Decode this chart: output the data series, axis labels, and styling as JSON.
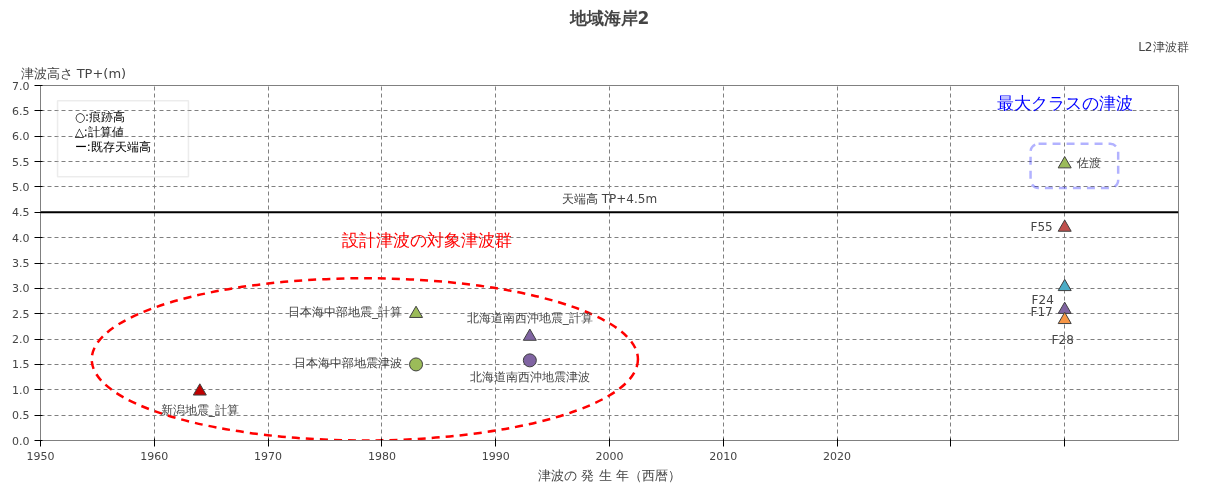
{
  "chart_data": {
    "type": "scatter",
    "title": "地域海岸2",
    "xlabel": "津波の 発 生 年（西暦）",
    "ylabel": "津波高さ TP+(m)",
    "xlim": [
      1950,
      2050
    ],
    "ylim": [
      0,
      7
    ],
    "xticks": [
      1950,
      1960,
      1970,
      1980,
      1990,
      2000,
      2010,
      2020,
      {
        "value": 2030,
        "label": null
      },
      {
        "value": 2040,
        "label": null
      }
    ],
    "yticks": [
      {
        "value": 0,
        "label": "0.0"
      },
      {
        "value": 0.5,
        "label": "0.5"
      },
      {
        "value": 1,
        "label": "1.0"
      },
      {
        "value": 1.5,
        "label": "1.5"
      },
      {
        "value": 2,
        "label": "2.0"
      },
      {
        "value": 2.5,
        "label": "2.5"
      },
      {
        "value": 3,
        "label": "3.0"
      },
      {
        "value": 3.5,
        "label": "3.5"
      },
      {
        "value": 4,
        "label": "4.0"
      },
      {
        "value": 4.5,
        "label": "4.5"
      },
      {
        "value": 5,
        "label": "5.0"
      },
      {
        "value": 5.5,
        "label": "5.5"
      },
      {
        "value": 6,
        "label": "6.0"
      },
      {
        "value": 6.5,
        "label": "6.5"
      },
      {
        "value": 7,
        "label": "7.0"
      }
    ],
    "grid": true,
    "series": [
      {
        "name": "新潟地震_計算",
        "marker": "triangle",
        "color": "#c00000",
        "x": [
          1964
        ],
        "values": [
          0.97
        ]
      },
      {
        "name": "日本海中部地震_計算",
        "marker": "triangle",
        "color": "#9bbb59",
        "x": [
          1983
        ],
        "values": [
          2.5
        ]
      },
      {
        "name": "日本海中部地震津波",
        "marker": "circle",
        "color": "#9bbb59",
        "x": [
          1983
        ],
        "values": [
          1.5
        ]
      },
      {
        "name": "北海道南西沖地震_計算",
        "marker": "triangle",
        "color": "#8064a2",
        "x": [
          1993
        ],
        "values": [
          2.05
        ]
      },
      {
        "name": "北海道南西沖地震津波",
        "marker": "circle",
        "color": "#8064a2",
        "x": [
          1993
        ],
        "values": [
          1.58
        ]
      },
      {
        "name": "佐渡",
        "marker": "triangle",
        "color": "#9bbb59",
        "x": [
          2040
        ],
        "values": [
          5.45
        ]
      },
      {
        "name": "F55",
        "marker": "triangle",
        "color": "#c0504d",
        "x": [
          2040
        ],
        "values": [
          4.2
        ]
      },
      {
        "name": "F24",
        "marker": "triangle",
        "color": "#4bacc6",
        "x": [
          2040
        ],
        "values": [
          3.03
        ]
      },
      {
        "name": "F17",
        "marker": "triangle",
        "color": "#8064a2",
        "x": [
          2040
        ],
        "values": [
          2.58
        ]
      },
      {
        "name": "F28",
        "marker": "triangle",
        "color": "#f79646",
        "x": [
          2040
        ],
        "values": [
          2.38
        ]
      }
    ],
    "ref_lines": [
      {
        "axis": "y",
        "value": 4.5,
        "label": "天端高 TP+4.5m",
        "color": "#000000"
      }
    ],
    "annotations": [
      "設計津波の対象津波群",
      "最大クラスの津波",
      "L2津波群",
      "○:痕跡高",
      "△:計算値",
      "ー:既存天端高"
    ]
  }
}
